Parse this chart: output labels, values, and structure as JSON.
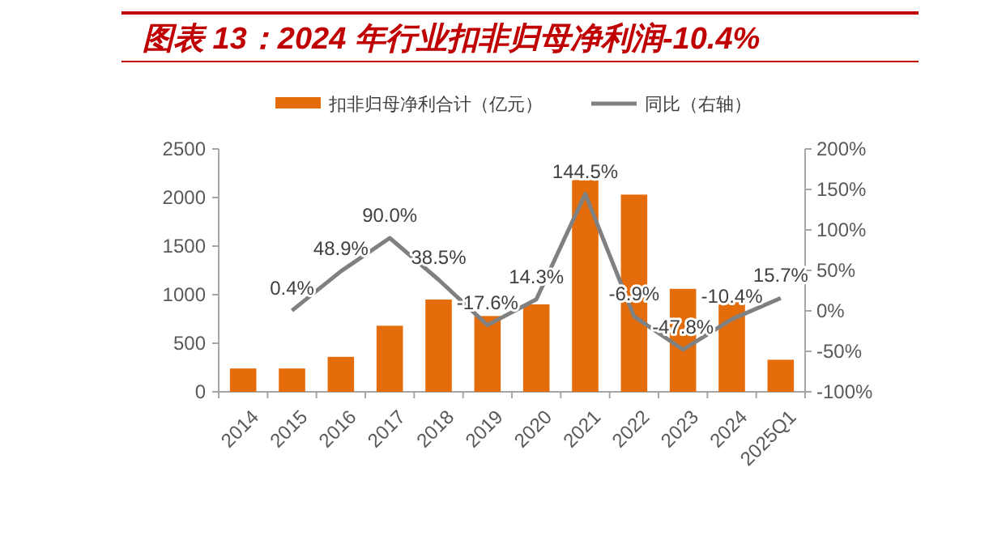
{
  "chart_data": {
    "type": "bar",
    "title": "图表 13：2024 年行业扣非归母净利润-10.4%",
    "categories": [
      "2014",
      "2015",
      "2016",
      "2017",
      "2018",
      "2019",
      "2020",
      "2021",
      "2022",
      "2023",
      "2024",
      "2025Q1"
    ],
    "series": [
      {
        "name": "扣非归母净利合计（亿元）",
        "color": "#e46c0a",
        "values": [
          240,
          240,
          360,
          680,
          950,
          780,
          900,
          2180,
          2030,
          1060,
          950,
          330
        ]
      },
      {
        "name": "同比（右轴）",
        "type": "line",
        "axis": "y2",
        "color": "#808080",
        "marker": "none",
        "values": [
          null,
          0.4,
          48.9,
          90.0,
          38.5,
          -17.6,
          14.3,
          144.5,
          -6.9,
          -47.8,
          -10.4,
          15.7
        ],
        "value_labels": [
          null,
          "0.4%",
          "48.9%",
          "90.0%",
          "38.5%",
          "-17.6%",
          "14.3%",
          "144.5%",
          "-6.9%",
          "-47.8%",
          "-10.4%",
          "15.7%"
        ]
      }
    ],
    "ylim": [
      0,
      2500
    ],
    "yticks": [
      0,
      500,
      1000,
      1500,
      2000,
      2500
    ],
    "y2lim": [
      -100,
      200
    ],
    "y2ticks": [
      {
        "value": -100,
        "label": "-100%"
      },
      {
        "value": -50,
        "label": "-50%"
      },
      {
        "value": 0,
        "label": "0%"
      },
      {
        "value": 50,
        "label": "50%"
      },
      {
        "value": 100,
        "label": "100%"
      },
      {
        "value": 150,
        "label": "150%"
      },
      {
        "value": 200,
        "label": "200%"
      }
    ],
    "grid": false,
    "legend": "top"
  }
}
